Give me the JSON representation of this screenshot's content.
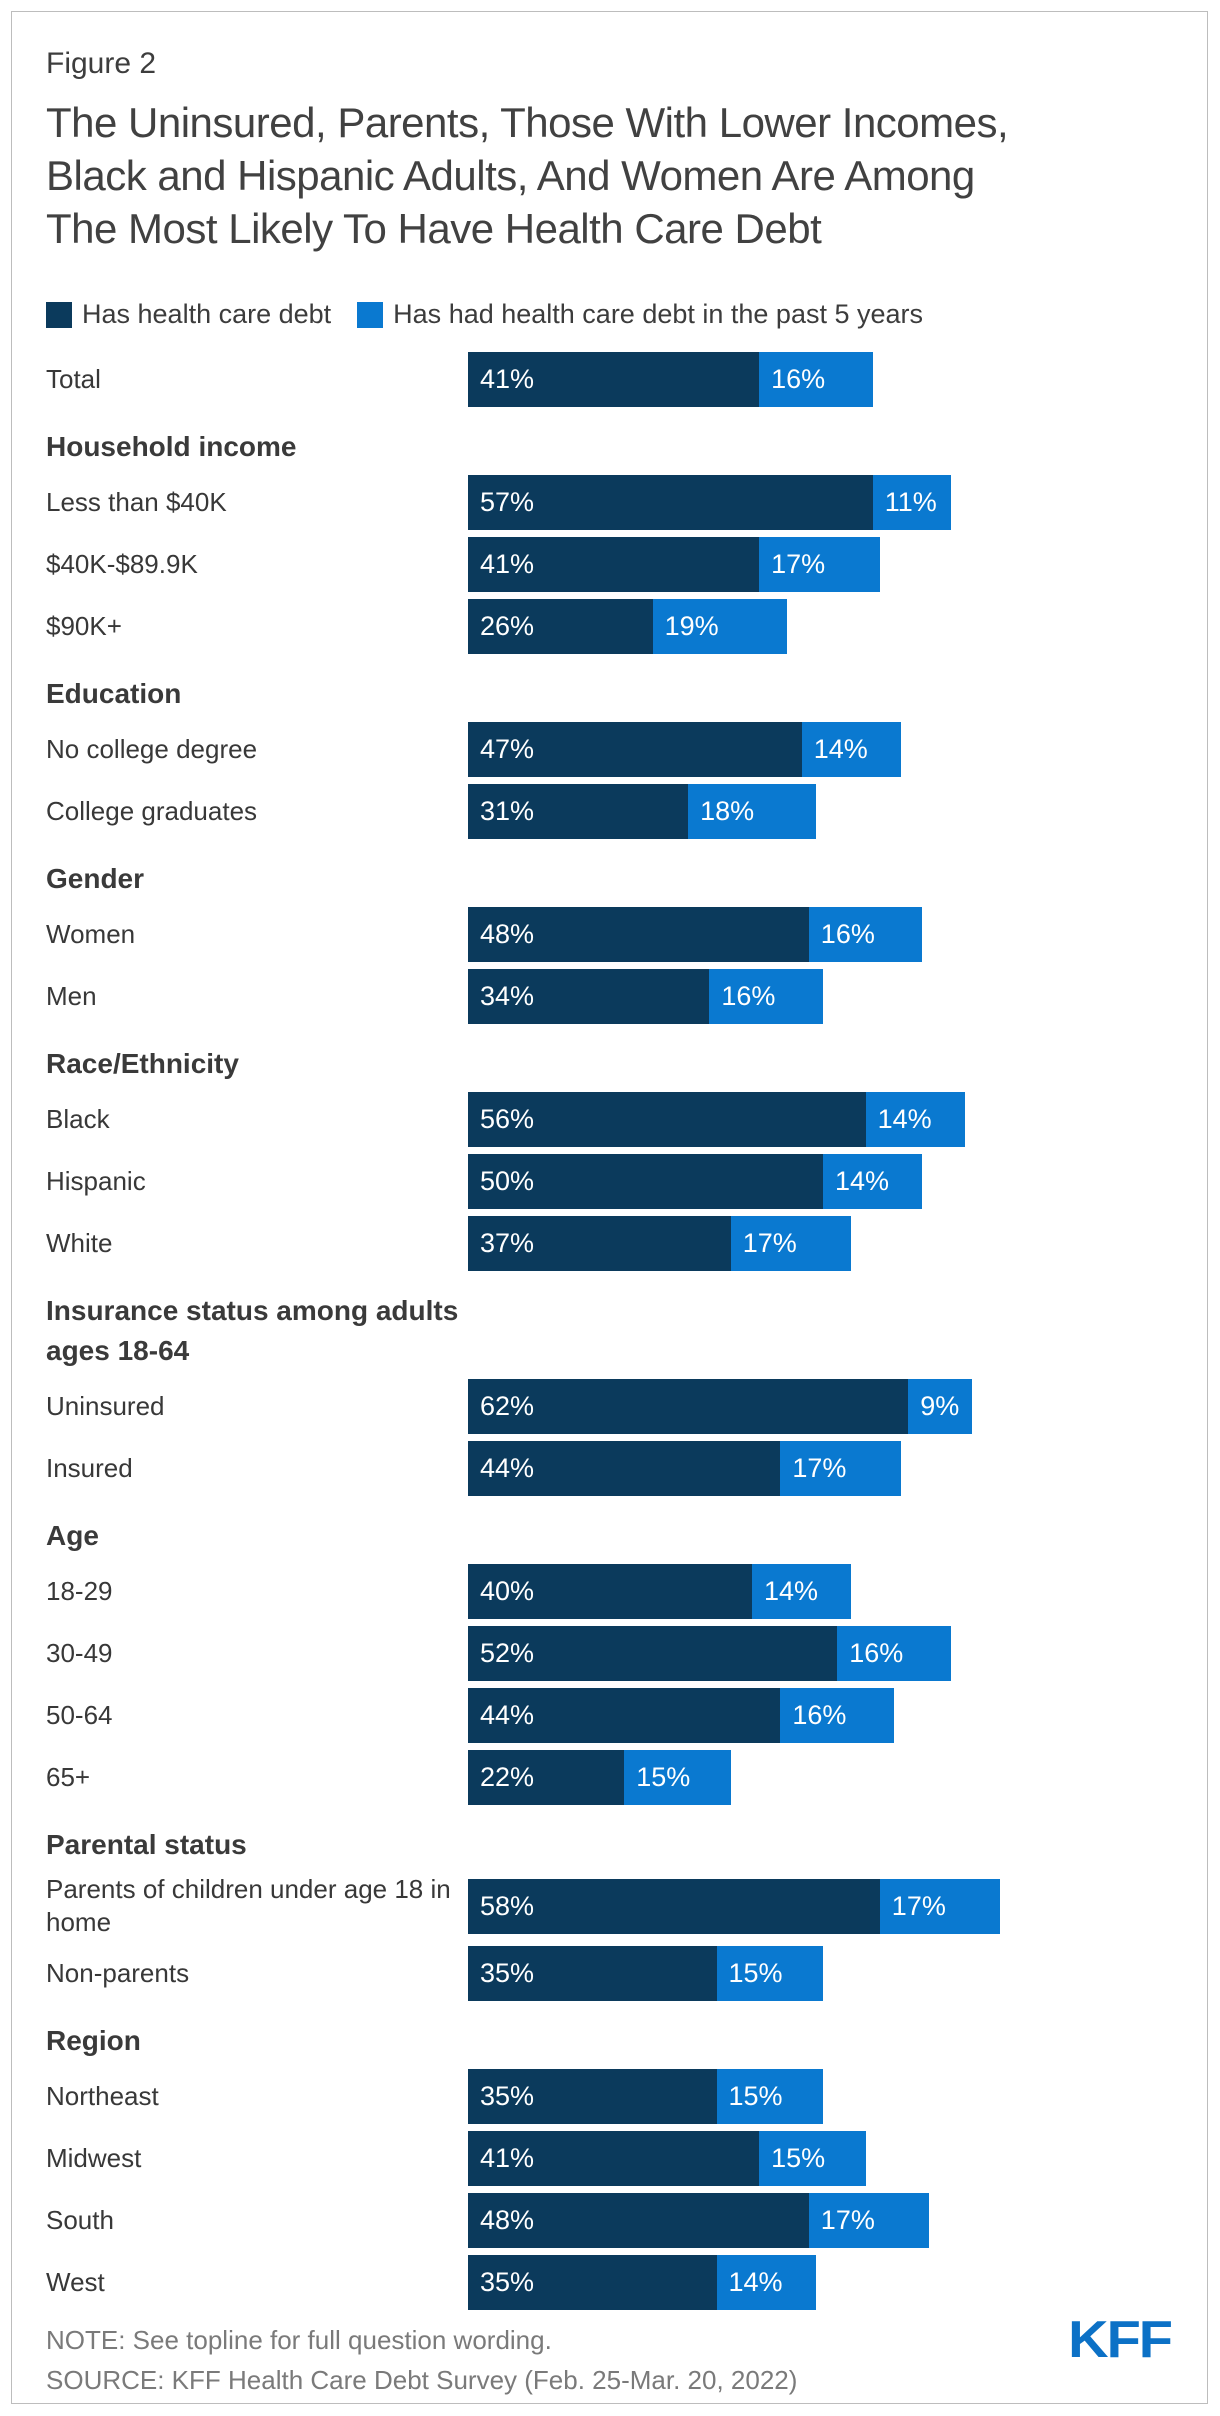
{
  "figure_label": "Figure 2",
  "title": "The Uninsured, Parents, Those With Lower Incomes,\nBlack and Hispanic Adults, And Women Are Among\nThe Most Likely To Have Health Care Debt",
  "legend": [
    {
      "label": "Has health care debt"
    },
    {
      "label": "Has had health care debt in the past 5 years"
    }
  ],
  "colors": {
    "has_debt": "#0b3a5c",
    "had_debt_past_5_years": "#0a79d0",
    "logo_blue": "#0c71c6"
  },
  "chart_data": {
    "type": "bar",
    "orientation": "horizontal",
    "stacked": true,
    "value_format": "percent",
    "title": "The Uninsured, Parents, Those With Lower Incomes, Black and Hispanic Adults, And Women Are Among The Most Likely To Have Health Care Debt",
    "series_names": [
      "Has health care debt",
      "Has had health care debt in the past 5 years"
    ],
    "groups": [
      {
        "section": null,
        "rows": [
          {
            "label": "Total",
            "values": [
              41,
              16
            ]
          }
        ]
      },
      {
        "section": "Household income",
        "rows": [
          {
            "label": "Less than $40K",
            "values": [
              57,
              11
            ]
          },
          {
            "label": "$40K-$89.9K",
            "values": [
              41,
              17
            ]
          },
          {
            "label": "$90K+",
            "values": [
              26,
              19
            ]
          }
        ]
      },
      {
        "section": "Education",
        "rows": [
          {
            "label": "No college degree",
            "values": [
              47,
              14
            ]
          },
          {
            "label": "College graduates",
            "values": [
              31,
              18
            ]
          }
        ]
      },
      {
        "section": "Gender",
        "rows": [
          {
            "label": "Women",
            "values": [
              48,
              16
            ]
          },
          {
            "label": "Men",
            "values": [
              34,
              16
            ]
          }
        ]
      },
      {
        "section": "Race/Ethnicity",
        "rows": [
          {
            "label": "Black",
            "values": [
              56,
              14
            ]
          },
          {
            "label": "Hispanic",
            "values": [
              50,
              14
            ]
          },
          {
            "label": "White",
            "values": [
              37,
              17
            ]
          }
        ]
      },
      {
        "section": "Insurance status among adults ages 18-64",
        "rows": [
          {
            "label": "Uninsured",
            "values": [
              62,
              9
            ]
          },
          {
            "label": "Insured",
            "values": [
              44,
              17
            ]
          }
        ]
      },
      {
        "section": "Age",
        "rows": [
          {
            "label": "18-29",
            "values": [
              40,
              14
            ]
          },
          {
            "label": "30-49",
            "values": [
              52,
              16
            ]
          },
          {
            "label": "50-64",
            "values": [
              44,
              16
            ]
          },
          {
            "label": "65+",
            "values": [
              22,
              15
            ]
          }
        ]
      },
      {
        "section": "Parental status",
        "rows": [
          {
            "label": "Parents of children under age 18 in home",
            "values": [
              58,
              17
            ]
          },
          {
            "label": "Non-parents",
            "values": [
              35,
              15
            ]
          }
        ]
      },
      {
        "section": "Region",
        "rows": [
          {
            "label": "Northeast",
            "values": [
              35,
              15
            ]
          },
          {
            "label": "Midwest",
            "values": [
              41,
              15
            ]
          },
          {
            "label": "South",
            "values": [
              48,
              17
            ]
          },
          {
            "label": "West",
            "values": [
              35,
              14
            ]
          }
        ]
      }
    ]
  },
  "note": "NOTE: See topline for full question wording.",
  "source": "SOURCE: KFF Health Care Debt Survey (Feb. 25-Mar. 20, 2022)",
  "logo_text": "KFF"
}
